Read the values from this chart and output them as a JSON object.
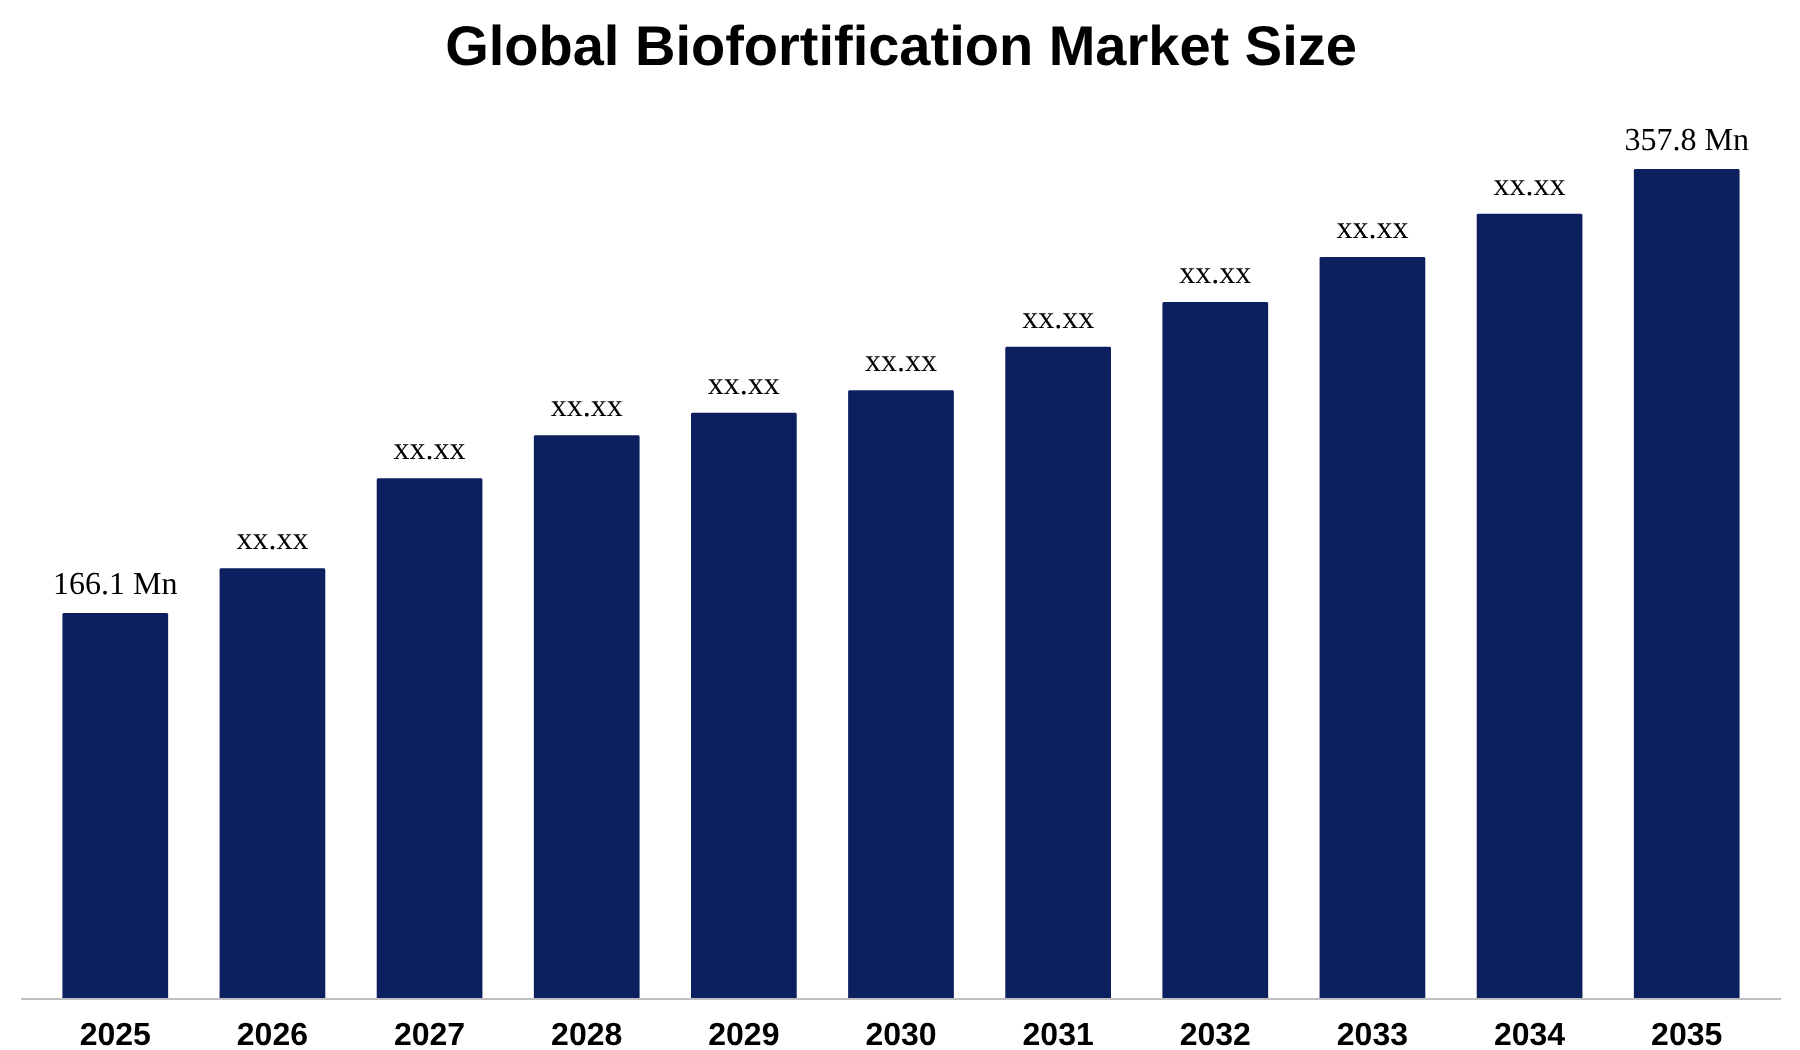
{
  "chart_data": {
    "type": "bar",
    "title": "Global Biofortification Market Size",
    "categories": [
      "2025",
      "2026",
      "2027",
      "2028",
      "2029",
      "2030",
      "2031",
      "2032",
      "2033",
      "2034",
      "2035"
    ],
    "values": [
      166.1,
      185.5,
      224.3,
      242.9,
      252.6,
      262.3,
      281.0,
      300.4,
      319.8,
      338.4,
      357.8
    ],
    "value_labels": [
      "166.1 Mn",
      "xx.xx",
      "xx.xx",
      "xx.xx",
      "xx.xx",
      "xx.xx",
      "xx.xx",
      "xx.xx",
      "xx.xx",
      "xx.xx",
      "357.8 Mn"
    ],
    "color": "#0c1f5e"
  }
}
